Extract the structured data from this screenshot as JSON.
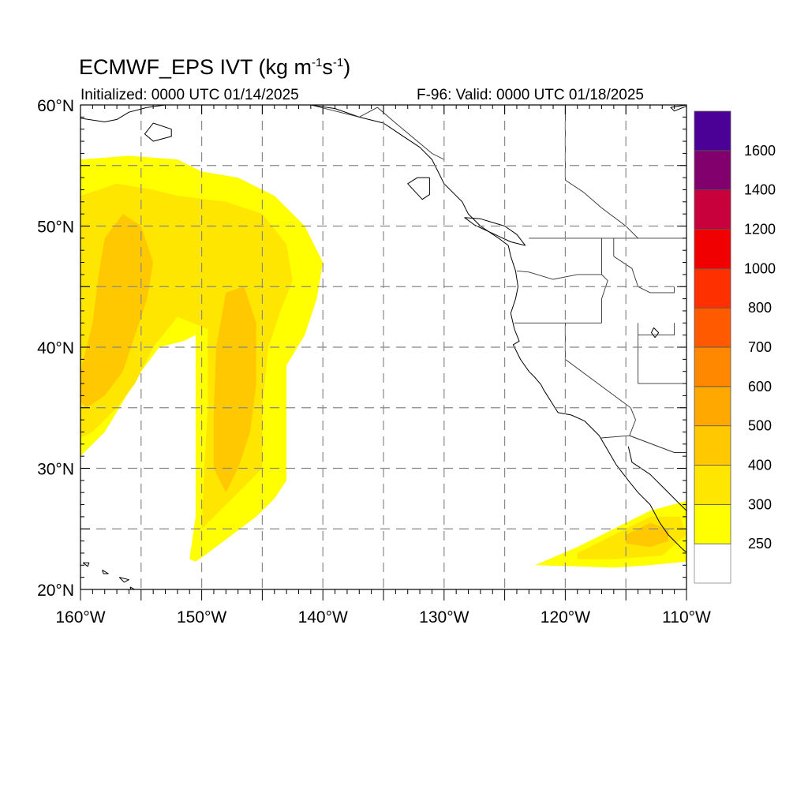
{
  "title": {
    "prefix": "ECMWF_EPS IVT (kg m",
    "exp1": "-1",
    "mid": "s",
    "exp2": "-1",
    "suffix": ")"
  },
  "subtitle_left": "Initialized: 0000 UTC 01/14/2025",
  "subtitle_right": "F-96: Valid: 0000 UTC 01/18/2025",
  "map": {
    "lon_range": [
      -160,
      -110
    ],
    "lat_range": [
      20,
      60
    ],
    "lon_ticks": [
      {
        "value": -160,
        "label": "160°W"
      },
      {
        "value": -150,
        "label": "150°W"
      },
      {
        "value": -140,
        "label": "140°W"
      },
      {
        "value": -130,
        "label": "130°W"
      },
      {
        "value": -120,
        "label": "120°W"
      },
      {
        "value": -110,
        "label": "110°W"
      }
    ],
    "lat_ticks": [
      {
        "value": 60,
        "label": "60°N"
      },
      {
        "value": 50,
        "label": "50°N"
      },
      {
        "value": 40,
        "label": "40°N"
      },
      {
        "value": 30,
        "label": "30°N"
      },
      {
        "value": 20,
        "label": "20°N"
      }
    ],
    "grid_lons": [
      -155,
      -150,
      -145,
      -140,
      -135,
      -130,
      -125,
      -120,
      -115
    ],
    "grid_lats": [
      55,
      50,
      45,
      40,
      35,
      30,
      25
    ],
    "grid_style": "dashed"
  },
  "colorbar": {
    "levels": [
      250,
      300,
      400,
      500,
      600,
      700,
      800,
      1000,
      1200,
      1400,
      1600
    ],
    "labels": [
      "250",
      "300",
      "400",
      "500",
      "600",
      "700",
      "800",
      "1000",
      "1200",
      "1400",
      "1600"
    ],
    "colors": [
      "#FFFFFF",
      "#FFFF00",
      "#FFE600",
      "#FFC800",
      "#FFA800",
      "#FF8800",
      "#FF5A00",
      "#FF3000",
      "#F00000",
      "#C8003C",
      "#82006E",
      "#4B0096"
    ]
  },
  "ivt_regions": [
    {
      "name": "plume-west",
      "level": 250,
      "poly": [
        [
          -160,
          55.5
        ],
        [
          -156,
          55.8
        ],
        [
          -152,
          55.5
        ],
        [
          -150,
          54.5
        ],
        [
          -147,
          54
        ],
        [
          -144,
          52.5
        ],
        [
          -141.5,
          50
        ],
        [
          -140,
          47
        ],
        [
          -140.5,
          44
        ],
        [
          -141.5,
          41
        ],
        [
          -143,
          38.5
        ],
        [
          -143,
          35
        ],
        [
          -143,
          33
        ],
        [
          -143,
          29
        ],
        [
          -144,
          27.5
        ],
        [
          -145.5,
          26
        ],
        [
          -147.5,
          24.5
        ],
        [
          -149.5,
          23
        ],
        [
          -150.5,
          22.3
        ],
        [
          -151,
          22.5
        ],
        [
          -150.5,
          26
        ],
        [
          -150.5,
          30
        ],
        [
          -150.5,
          35
        ],
        [
          -150.5,
          41
        ],
        [
          -151.5,
          40.5
        ],
        [
          -153.5,
          40
        ],
        [
          -155,
          38
        ],
        [
          -156.5,
          35.5
        ],
        [
          -158,
          33
        ],
        [
          -160,
          31
        ]
      ]
    },
    {
      "name": "plume-west-inner",
      "level": 300,
      "poly": [
        [
          -160,
          52.5
        ],
        [
          -157,
          53.5
        ],
        [
          -154,
          53
        ],
        [
          -152,
          52.5
        ],
        [
          -148,
          52
        ],
        [
          -145,
          51
        ],
        [
          -143,
          48.5
        ],
        [
          -142.5,
          45.5
        ],
        [
          -143.5,
          43
        ],
        [
          -144.5,
          40
        ],
        [
          -145,
          35
        ],
        [
          -145,
          30
        ],
        [
          -147,
          28
        ],
        [
          -149,
          26
        ],
        [
          -150,
          25
        ],
        [
          -149.8,
          30
        ],
        [
          -149.5,
          35
        ],
        [
          -149.5,
          41.5
        ],
        [
          -152,
          42.5
        ],
        [
          -154,
          40
        ],
        [
          -155.5,
          37
        ],
        [
          -157,
          35
        ],
        [
          -159,
          33
        ],
        [
          -160,
          32.5
        ]
      ]
    },
    {
      "name": "plume-west-core-a",
      "level": 400,
      "poly": [
        [
          -158,
          49
        ],
        [
          -156.5,
          51
        ],
        [
          -155,
          50
        ],
        [
          -154,
          47
        ],
        [
          -154.5,
          44
        ],
        [
          -155.5,
          41
        ],
        [
          -156.5,
          38
        ],
        [
          -158,
          36
        ],
        [
          -159.5,
          35
        ],
        [
          -160,
          35.5
        ],
        [
          -160,
          38
        ],
        [
          -159,
          42
        ],
        [
          -158.5,
          46
        ]
      ]
    },
    {
      "name": "plume-west-core-b",
      "level": 400,
      "poly": [
        [
          -148,
          44.5
        ],
        [
          -146.5,
          45
        ],
        [
          -145.5,
          42
        ],
        [
          -145.5,
          37
        ],
        [
          -146,
          33
        ],
        [
          -147,
          30
        ],
        [
          -148,
          28
        ],
        [
          -149,
          30
        ],
        [
          -149,
          35
        ],
        [
          -148.8,
          40
        ]
      ]
    },
    {
      "name": "baja-plume",
      "level": 250,
      "poly": [
        [
          -122.5,
          22
        ],
        [
          -119,
          23.5
        ],
        [
          -116,
          25
        ],
        [
          -113,
          26.5
        ],
        [
          -110,
          27.3
        ],
        [
          -110,
          22.3
        ],
        [
          -113,
          22
        ],
        [
          -116,
          21.8
        ],
        [
          -119,
          21.9
        ]
      ]
    },
    {
      "name": "baja-plume-inner",
      "level": 300,
      "poly": [
        [
          -119,
          23
        ],
        [
          -116,
          24.5
        ],
        [
          -113,
          26
        ],
        [
          -110.5,
          26
        ],
        [
          -110,
          24.5
        ],
        [
          -112,
          22.8
        ],
        [
          -116,
          22.5
        ],
        [
          -119,
          22.5
        ]
      ]
    },
    {
      "name": "baja-plume-core",
      "level": 400,
      "poly": [
        [
          -115,
          24.5
        ],
        [
          -113,
          25.5
        ],
        [
          -111.5,
          25
        ],
        [
          -111.5,
          24
        ],
        [
          -113,
          23.5
        ],
        [
          -115,
          23.8
        ]
      ]
    }
  ],
  "state_borders": [
    {
      "name": "wa-or",
      "pts": [
        [
          -124,
          46.3
        ],
        [
          -123,
          46.2
        ],
        [
          -121,
          45.6
        ],
        [
          -119,
          46
        ],
        [
          -117,
          46
        ]
      ]
    },
    {
      "name": "or-ca",
      "pts": [
        [
          -124.2,
          42
        ],
        [
          -117,
          42
        ]
      ]
    },
    {
      "name": "ca-nv",
      "pts": [
        [
          -120,
          42
        ],
        [
          -120,
          39
        ],
        [
          -114.6,
          35
        ]
      ]
    },
    {
      "name": "id-line",
      "pts": [
        [
          -117,
          49
        ],
        [
          -117,
          46
        ],
        [
          -116.5,
          45.5
        ],
        [
          -117,
          44
        ],
        [
          -117,
          42
        ]
      ]
    },
    {
      "name": "canada-us",
      "pts": [
        [
          -123,
          49
        ],
        [
          -110,
          49
        ]
      ]
    },
    {
      "name": "az-line",
      "pts": [
        [
          -114.6,
          35
        ],
        [
          -114.2,
          34
        ],
        [
          -114.7,
          32.7
        ],
        [
          -111,
          31.3
        ]
      ]
    },
    {
      "name": "nv-ut",
      "pts": [
        [
          -114,
          42
        ],
        [
          -114,
          37
        ]
      ]
    },
    {
      "name": "mt-line",
      "pts": [
        [
          -116,
          49
        ],
        [
          -116,
          47.5
        ],
        [
          -114.5,
          46.5
        ],
        [
          -114,
          45
        ],
        [
          -113,
          44.5
        ],
        [
          -111,
          44.5
        ],
        [
          -111,
          45
        ]
      ]
    },
    {
      "name": "ut-line",
      "pts": [
        [
          -114,
          41
        ],
        [
          -111,
          41
        ],
        [
          -111,
          42
        ]
      ]
    },
    {
      "name": "az-ut",
      "pts": [
        [
          -114,
          37
        ],
        [
          -110,
          37
        ]
      ]
    },
    {
      "name": "mexico-us",
      "pts": [
        [
          -117.1,
          32.5
        ],
        [
          -114.7,
          32.7
        ],
        [
          -111,
          31.3
        ],
        [
          -110,
          31.3
        ]
      ]
    },
    {
      "name": "canada-bc-ak",
      "pts": [
        [
          -141,
          60
        ],
        [
          -139,
          59.5
        ],
        [
          -137,
          59
        ],
        [
          -135.5,
          59.8
        ],
        [
          -134,
          58.5
        ],
        [
          -131,
          56
        ],
        [
          -130,
          55.5
        ]
      ]
    },
    {
      "name": "bc-ab",
      "pts": [
        [
          -120,
          60
        ],
        [
          -120,
          53.8
        ],
        [
          -118.5,
          52.8
        ],
        [
          -117,
          51.5
        ],
        [
          -115,
          50
        ],
        [
          -114,
          49
        ]
      ]
    }
  ],
  "coastlines": [
    {
      "name": "us-west-coast",
      "pts": [
        [
          -124.7,
          48.4
        ],
        [
          -124.5,
          47.5
        ],
        [
          -124.1,
          46.3
        ],
        [
          -123.9,
          45
        ],
        [
          -124.1,
          44
        ],
        [
          -124.5,
          42.8
        ],
        [
          -124.2,
          41.5
        ],
        [
          -123.8,
          40.5
        ],
        [
          -124.3,
          40.2
        ],
        [
          -123.7,
          39
        ],
        [
          -123,
          38
        ],
        [
          -122.5,
          37.5
        ],
        [
          -122,
          36.9
        ],
        [
          -121.8,
          36.5
        ],
        [
          -120.6,
          34.6
        ],
        [
          -119.5,
          34.4
        ],
        [
          -118.4,
          33.9
        ],
        [
          -117.2,
          32.7
        ],
        [
          -116.5,
          31.5
        ],
        [
          -115.8,
          30.3
        ],
        [
          -114.8,
          29
        ],
        [
          -114,
          28
        ],
        [
          -113,
          27
        ],
        [
          -112.2,
          25.5
        ],
        [
          -111.5,
          24.5
        ],
        [
          -110.3,
          23.3
        ],
        [
          -109.9,
          23
        ]
      ]
    },
    {
      "name": "gulf-california-east",
      "pts": [
        [
          -114.8,
          31.8
        ],
        [
          -114.5,
          30.5
        ],
        [
          -113,
          29.5
        ],
        [
          -112,
          28.5
        ],
        [
          -111,
          27.5
        ],
        [
          -110,
          26.5
        ]
      ]
    },
    {
      "name": "bc-coast",
      "pts": [
        [
          -124.7,
          48.4
        ],
        [
          -125.5,
          49
        ],
        [
          -127,
          50
        ],
        [
          -128,
          51
        ],
        [
          -128.5,
          52
        ],
        [
          -130,
          53.5
        ],
        [
          -130.5,
          54.5
        ],
        [
          -131,
          55.5
        ],
        [
          -132,
          56.5
        ],
        [
          -133.5,
          57.5
        ],
        [
          -135,
          58.5
        ],
        [
          -137,
          59
        ],
        [
          -139,
          59.7
        ],
        [
          -141,
          60
        ]
      ]
    },
    {
      "name": "vancouver-island",
      "pts": [
        [
          -123.3,
          48.4
        ],
        [
          -124.5,
          48.7
        ],
        [
          -125.8,
          49.3
        ],
        [
          -127.5,
          50.1
        ],
        [
          -128.3,
          50.7
        ],
        [
          -127,
          50.6
        ],
        [
          -125,
          50
        ],
        [
          -124,
          49.3
        ],
        [
          -123.3,
          48.4
        ]
      ]
    },
    {
      "name": "haida-gwaii",
      "pts": [
        [
          -131.2,
          54
        ],
        [
          -132.2,
          54
        ],
        [
          -133,
          53.5
        ],
        [
          -131.8,
          52.2
        ],
        [
          -131.2,
          52.6
        ],
        [
          -131.2,
          54
        ]
      ]
    },
    {
      "name": "alaska-coast",
      "pts": [
        [
          -160,
          58.9
        ],
        [
          -158,
          58.6
        ],
        [
          -157,
          58.8
        ],
        [
          -156,
          59.4
        ],
        [
          -154.5,
          59.8
        ],
        [
          -153,
          60
        ]
      ]
    },
    {
      "name": "kodiak",
      "pts": [
        [
          -154,
          58.5
        ],
        [
          -152.5,
          58
        ],
        [
          -152.5,
          57.4
        ],
        [
          -154,
          57
        ],
        [
          -154.7,
          57.6
        ],
        [
          -154,
          58.5
        ]
      ]
    },
    {
      "name": "hawaii-1",
      "pts": [
        [
          -159.8,
          22.2
        ],
        [
          -159.3,
          22.2
        ],
        [
          -159.4,
          21.9
        ],
        [
          -159.8,
          22.2
        ]
      ]
    },
    {
      "name": "hawaii-2",
      "pts": [
        [
          -158.2,
          21.6
        ],
        [
          -157.7,
          21.3
        ],
        [
          -158.1,
          21.3
        ],
        [
          -158.2,
          21.6
        ]
      ]
    },
    {
      "name": "hawaii-3",
      "pts": [
        [
          -156.8,
          21
        ],
        [
          -156,
          20.8
        ],
        [
          -156.4,
          20.6
        ],
        [
          -156.8,
          21
        ]
      ]
    },
    {
      "name": "hawaii-4",
      "pts": [
        [
          -155.9,
          20.2
        ],
        [
          -155,
          19.7
        ],
        [
          -155.6,
          19.2
        ],
        [
          -155.9,
          20.2
        ]
      ]
    },
    {
      "name": "great-salt-lake",
      "pts": [
        [
          -112.7,
          41.6
        ],
        [
          -112.3,
          41.2
        ],
        [
          -112.6,
          40.8
        ],
        [
          -112.9,
          41.2
        ],
        [
          -112.7,
          41.6
        ]
      ]
    },
    {
      "name": "hudson-tail",
      "pts": [
        [
          -110,
          59.9
        ],
        [
          -111,
          59.5
        ],
        [
          -111.3,
          59.8
        ],
        [
          -110,
          60
        ]
      ]
    }
  ]
}
